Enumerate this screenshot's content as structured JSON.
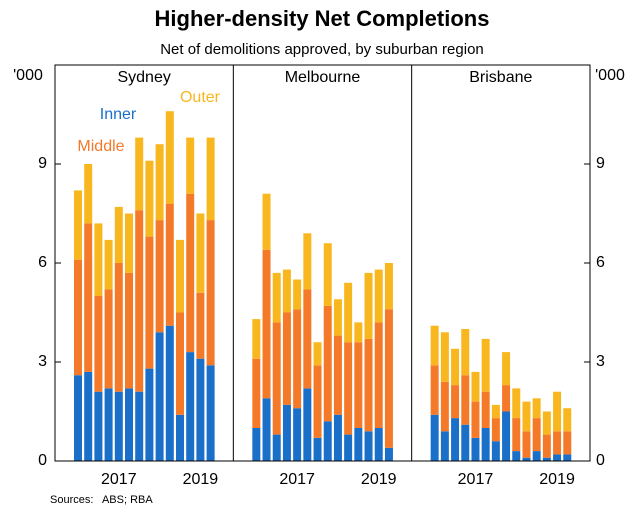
{
  "chart_data": {
    "type": "bar",
    "stacked": true,
    "title": "Higher-density Net Completions",
    "subtitle": "Net of demolitions approved, by suburban region",
    "y_unit": "'000",
    "source": "Sources:   ABS; RBA",
    "ylim": [
      0,
      12
    ],
    "yticks": [
      0,
      3,
      6,
      9
    ],
    "categories": [
      null,
      null,
      null,
      null,
      "2017",
      null,
      null,
      null,
      null,
      null,
      null,
      null,
      "2019",
      null
    ],
    "series": [
      {
        "name": "Inner",
        "color": "#1a6fc9"
      },
      {
        "name": "Middle",
        "color": "#f47a2a"
      },
      {
        "name": "Outer",
        "color": "#f9b71f"
      }
    ],
    "panels": [
      {
        "title": "Sydney",
        "values": [
          [
            2.6,
            2.7,
            2.1,
            2.2,
            2.1,
            2.2,
            2.1,
            2.8,
            3.9,
            4.1,
            1.4,
            3.3,
            3.1,
            2.9
          ],
          [
            3.5,
            4.5,
            2.9,
            3.0,
            3.9,
            3.5,
            5.5,
            4.0,
            3.4,
            3.7,
            3.1,
            4.8,
            2.0,
            4.4
          ],
          [
            2.1,
            1.8,
            2.2,
            1.5,
            1.7,
            1.8,
            2.2,
            2.3,
            2.3,
            2.8,
            2.2,
            1.7,
            2.4,
            2.5
          ]
        ]
      },
      {
        "title": "Melbourne",
        "values": [
          [
            1.0,
            1.9,
            0.8,
            1.7,
            1.6,
            2.2,
            0.7,
            1.2,
            1.4,
            0.8,
            1.0,
            0.9,
            1.0,
            0.4
          ],
          [
            2.1,
            4.5,
            3.4,
            2.8,
            3.0,
            3.0,
            2.2,
            3.5,
            2.4,
            2.8,
            2.6,
            2.8,
            3.2,
            4.2
          ],
          [
            1.2,
            1.7,
            1.5,
            1.3,
            0.9,
            1.7,
            0.7,
            1.9,
            1.1,
            1.8,
            0.6,
            2.0,
            1.6,
            1.4
          ]
        ]
      },
      {
        "title": "Brisbane",
        "values": [
          [
            1.4,
            0.9,
            1.3,
            1.1,
            0.7,
            1.0,
            0.6,
            1.5,
            0.3,
            0.1,
            0.3,
            0.1,
            0.2,
            0.2
          ],
          [
            1.5,
            1.5,
            1.0,
            1.5,
            1.1,
            1.1,
            0.7,
            0.8,
            1.0,
            0.8,
            1.0,
            0.7,
            0.7,
            0.7
          ],
          [
            1.2,
            1.5,
            1.1,
            1.4,
            0.9,
            1.6,
            0.4,
            1.0,
            0.9,
            0.9,
            0.6,
            0.7,
            1.2,
            0.7
          ]
        ]
      }
    ]
  }
}
